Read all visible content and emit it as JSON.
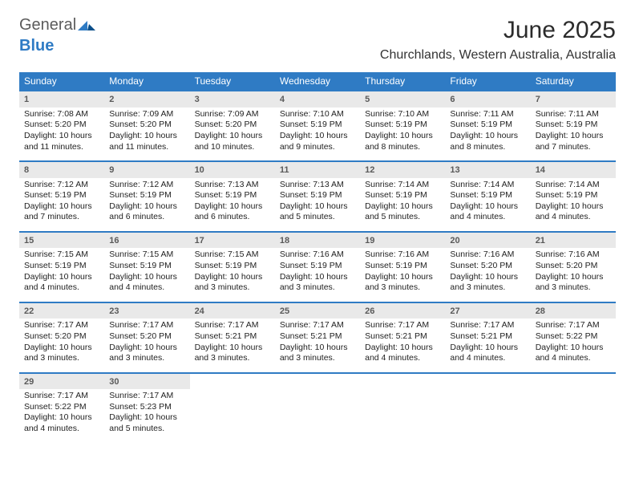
{
  "logo": {
    "line1": "General",
    "line2": "Blue"
  },
  "title": "June 2025",
  "location": "Churchlands, Western Australia, Australia",
  "colors": {
    "header_bg": "#2f7bc4",
    "header_fg": "#ffffff",
    "daynum_bg": "#e9e9e9",
    "border": "#2f7bc4",
    "text": "#222222"
  },
  "dow": [
    "Sunday",
    "Monday",
    "Tuesday",
    "Wednesday",
    "Thursday",
    "Friday",
    "Saturday"
  ],
  "weeks": [
    [
      {
        "n": "1",
        "sr": "Sunrise: 7:08 AM",
        "ss": "Sunset: 5:20 PM",
        "d1": "Daylight: 10 hours",
        "d2": "and 11 minutes."
      },
      {
        "n": "2",
        "sr": "Sunrise: 7:09 AM",
        "ss": "Sunset: 5:20 PM",
        "d1": "Daylight: 10 hours",
        "d2": "and 11 minutes."
      },
      {
        "n": "3",
        "sr": "Sunrise: 7:09 AM",
        "ss": "Sunset: 5:20 PM",
        "d1": "Daylight: 10 hours",
        "d2": "and 10 minutes."
      },
      {
        "n": "4",
        "sr": "Sunrise: 7:10 AM",
        "ss": "Sunset: 5:19 PM",
        "d1": "Daylight: 10 hours",
        "d2": "and 9 minutes."
      },
      {
        "n": "5",
        "sr": "Sunrise: 7:10 AM",
        "ss": "Sunset: 5:19 PM",
        "d1": "Daylight: 10 hours",
        "d2": "and 8 minutes."
      },
      {
        "n": "6",
        "sr": "Sunrise: 7:11 AM",
        "ss": "Sunset: 5:19 PM",
        "d1": "Daylight: 10 hours",
        "d2": "and 8 minutes."
      },
      {
        "n": "7",
        "sr": "Sunrise: 7:11 AM",
        "ss": "Sunset: 5:19 PM",
        "d1": "Daylight: 10 hours",
        "d2": "and 7 minutes."
      }
    ],
    [
      {
        "n": "8",
        "sr": "Sunrise: 7:12 AM",
        "ss": "Sunset: 5:19 PM",
        "d1": "Daylight: 10 hours",
        "d2": "and 7 minutes."
      },
      {
        "n": "9",
        "sr": "Sunrise: 7:12 AM",
        "ss": "Sunset: 5:19 PM",
        "d1": "Daylight: 10 hours",
        "d2": "and 6 minutes."
      },
      {
        "n": "10",
        "sr": "Sunrise: 7:13 AM",
        "ss": "Sunset: 5:19 PM",
        "d1": "Daylight: 10 hours",
        "d2": "and 6 minutes."
      },
      {
        "n": "11",
        "sr": "Sunrise: 7:13 AM",
        "ss": "Sunset: 5:19 PM",
        "d1": "Daylight: 10 hours",
        "d2": "and 5 minutes."
      },
      {
        "n": "12",
        "sr": "Sunrise: 7:14 AM",
        "ss": "Sunset: 5:19 PM",
        "d1": "Daylight: 10 hours",
        "d2": "and 5 minutes."
      },
      {
        "n": "13",
        "sr": "Sunrise: 7:14 AM",
        "ss": "Sunset: 5:19 PM",
        "d1": "Daylight: 10 hours",
        "d2": "and 4 minutes."
      },
      {
        "n": "14",
        "sr": "Sunrise: 7:14 AM",
        "ss": "Sunset: 5:19 PM",
        "d1": "Daylight: 10 hours",
        "d2": "and 4 minutes."
      }
    ],
    [
      {
        "n": "15",
        "sr": "Sunrise: 7:15 AM",
        "ss": "Sunset: 5:19 PM",
        "d1": "Daylight: 10 hours",
        "d2": "and 4 minutes."
      },
      {
        "n": "16",
        "sr": "Sunrise: 7:15 AM",
        "ss": "Sunset: 5:19 PM",
        "d1": "Daylight: 10 hours",
        "d2": "and 4 minutes."
      },
      {
        "n": "17",
        "sr": "Sunrise: 7:15 AM",
        "ss": "Sunset: 5:19 PM",
        "d1": "Daylight: 10 hours",
        "d2": "and 3 minutes."
      },
      {
        "n": "18",
        "sr": "Sunrise: 7:16 AM",
        "ss": "Sunset: 5:19 PM",
        "d1": "Daylight: 10 hours",
        "d2": "and 3 minutes."
      },
      {
        "n": "19",
        "sr": "Sunrise: 7:16 AM",
        "ss": "Sunset: 5:19 PM",
        "d1": "Daylight: 10 hours",
        "d2": "and 3 minutes."
      },
      {
        "n": "20",
        "sr": "Sunrise: 7:16 AM",
        "ss": "Sunset: 5:20 PM",
        "d1": "Daylight: 10 hours",
        "d2": "and 3 minutes."
      },
      {
        "n": "21",
        "sr": "Sunrise: 7:16 AM",
        "ss": "Sunset: 5:20 PM",
        "d1": "Daylight: 10 hours",
        "d2": "and 3 minutes."
      }
    ],
    [
      {
        "n": "22",
        "sr": "Sunrise: 7:17 AM",
        "ss": "Sunset: 5:20 PM",
        "d1": "Daylight: 10 hours",
        "d2": "and 3 minutes."
      },
      {
        "n": "23",
        "sr": "Sunrise: 7:17 AM",
        "ss": "Sunset: 5:20 PM",
        "d1": "Daylight: 10 hours",
        "d2": "and 3 minutes."
      },
      {
        "n": "24",
        "sr": "Sunrise: 7:17 AM",
        "ss": "Sunset: 5:21 PM",
        "d1": "Daylight: 10 hours",
        "d2": "and 3 minutes."
      },
      {
        "n": "25",
        "sr": "Sunrise: 7:17 AM",
        "ss": "Sunset: 5:21 PM",
        "d1": "Daylight: 10 hours",
        "d2": "and 3 minutes."
      },
      {
        "n": "26",
        "sr": "Sunrise: 7:17 AM",
        "ss": "Sunset: 5:21 PM",
        "d1": "Daylight: 10 hours",
        "d2": "and 4 minutes."
      },
      {
        "n": "27",
        "sr": "Sunrise: 7:17 AM",
        "ss": "Sunset: 5:21 PM",
        "d1": "Daylight: 10 hours",
        "d2": "and 4 minutes."
      },
      {
        "n": "28",
        "sr": "Sunrise: 7:17 AM",
        "ss": "Sunset: 5:22 PM",
        "d1": "Daylight: 10 hours",
        "d2": "and 4 minutes."
      }
    ],
    [
      {
        "n": "29",
        "sr": "Sunrise: 7:17 AM",
        "ss": "Sunset: 5:22 PM",
        "d1": "Daylight: 10 hours",
        "d2": "and 4 minutes."
      },
      {
        "n": "30",
        "sr": "Sunrise: 7:17 AM",
        "ss": "Sunset: 5:23 PM",
        "d1": "Daylight: 10 hours",
        "d2": "and 5 minutes."
      },
      null,
      null,
      null,
      null,
      null
    ]
  ]
}
